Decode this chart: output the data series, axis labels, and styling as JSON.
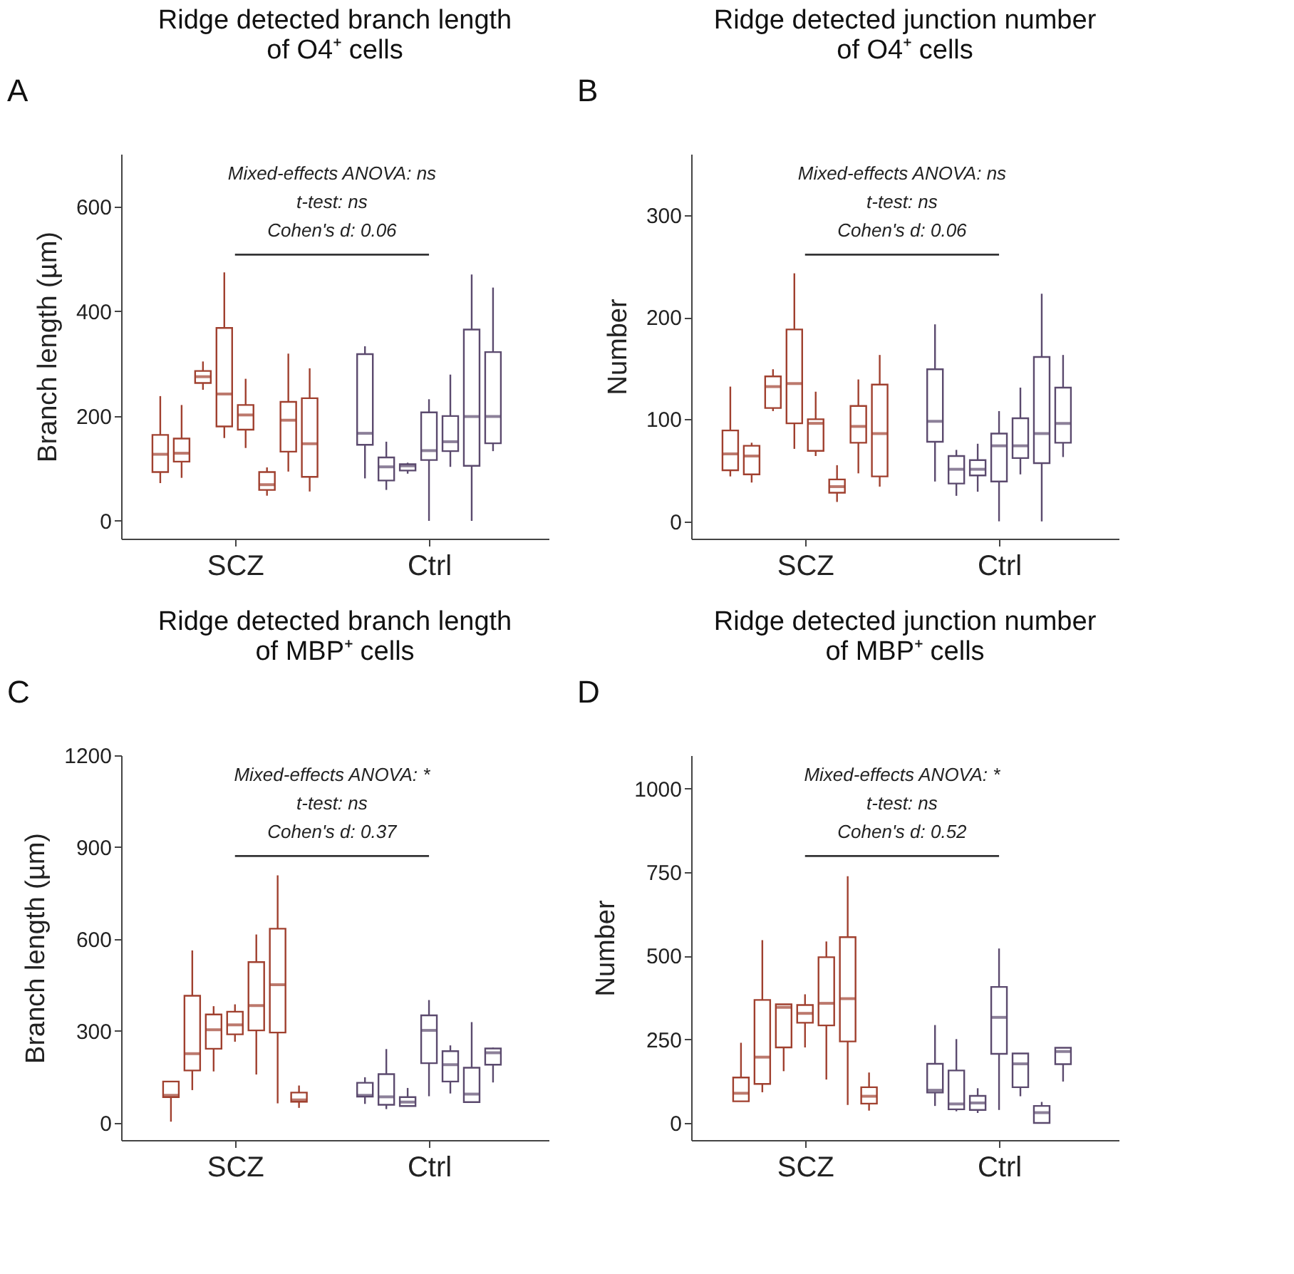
{
  "chart_data": [
    {
      "type": "box",
      "title": "Ridge detected branch length\nof O4⁺ cells",
      "ylabel": "Branch length (µm)",
      "categories": [
        "SCZ",
        "Ctrl"
      ],
      "ylim": [
        -34,
        700
      ],
      "yticks": [
        0,
        200,
        400,
        600
      ],
      "annotations": [
        "A",
        "Mixed-effects ANOVA: ns",
        "t-test: ns",
        "Cohen's d: 0.06"
      ],
      "series": [
        {
          "colors": [
            "#a0402f",
            "#5b4a6e"
          ],
          "boxes": [
            {
              "low": 72,
              "q1": 93,
              "median": 127,
              "q3": 164,
              "high": 238
            },
            {
              "low": 81,
              "q1": 145,
              "median": 167,
              "q3": 318,
              "high": 333
            }
          ]
        },
        {
          "colors": [
            "#a0402f",
            "#5b4a6e"
          ],
          "boxes": [
            {
              "low": 82,
              "q1": 113,
              "median": 129,
              "q3": 157,
              "high": 221
            },
            {
              "low": 59,
              "q1": 77,
              "median": 103,
              "q3": 121,
              "high": 151
            }
          ]
        },
        {
          "colors": [
            "#a0402f",
            "#5b4a6e"
          ],
          "boxes": [
            {
              "low": 250,
              "q1": 263,
              "median": 275,
              "q3": 286,
              "high": 304
            },
            {
              "low": 90,
              "q1": 96,
              "median": 105,
              "q3": 108,
              "high": 111
            }
          ]
        },
        {
          "colors": [
            "#a0402f",
            "#5b4a6e"
          ],
          "boxes": [
            {
              "low": 158,
              "q1": 180,
              "median": 242,
              "q3": 368,
              "high": 474
            },
            {
              "low": 0,
              "q1": 116,
              "median": 134,
              "q3": 207,
              "high": 232
            }
          ]
        },
        {
          "colors": [
            "#a0402f",
            "#5b4a6e"
          ],
          "boxes": [
            {
              "low": 139,
              "q1": 174,
              "median": 202,
              "q3": 221,
              "high": 271
            },
            {
              "low": 103,
              "q1": 133,
              "median": 151,
              "q3": 200,
              "high": 279
            }
          ]
        },
        {
          "colors": [
            "#a0402f",
            "#5b4a6e"
          ],
          "boxes": [
            {
              "low": 48,
              "q1": 59,
              "median": 69,
              "q3": 93,
              "high": 102
            },
            {
              "low": 0,
              "q1": 105,
              "median": 199,
              "q3": 365,
              "high": 470
            }
          ]
        },
        {
          "colors": [
            "#a0402f",
            "#5b4a6e"
          ],
          "boxes": [
            {
              "low": 94,
              "q1": 132,
              "median": 192,
              "q3": 227,
              "high": 319
            },
            {
              "low": 133,
              "q1": 148,
              "median": 199,
              "q3": 322,
              "high": 445
            }
          ]
        },
        {
          "colors": [
            "#a0402f",
            "#5b4a6e"
          ],
          "boxes": [
            {
              "low": 56,
              "q1": 84,
              "median": 147,
              "q3": 234,
              "high": 291
            },
            null
          ]
        }
      ]
    },
    {
      "type": "box",
      "title": "Ridge detected junction number\nof O4⁺ cells",
      "ylabel": "Number",
      "categories": [
        "SCZ",
        "Ctrl"
      ],
      "ylim": [
        -17,
        360
      ],
      "yticks": [
        0,
        100,
        200,
        300
      ],
      "annotations": [
        "B",
        "Mixed-effects ANOVA: ns",
        "t-test: ns",
        "Cohen's d: 0.06"
      ],
      "series": [
        {
          "colors": [
            "#a0402f",
            "#5b4a6e"
          ],
          "boxes": [
            {
              "low": 44,
              "q1": 50,
              "median": 66,
              "q3": 89,
              "high": 132
            },
            {
              "low": 39,
              "q1": 78,
              "median": 98,
              "q3": 149,
              "high": 193
            }
          ]
        },
        {
          "colors": [
            "#a0402f",
            "#5b4a6e"
          ],
          "boxes": [
            {
              "low": 38,
              "q1": 46,
              "median": 64,
              "q3": 74,
              "high": 77
            },
            {
              "low": 25,
              "q1": 37,
              "median": 51,
              "q3": 64,
              "high": 70
            }
          ]
        },
        {
          "colors": [
            "#a0402f",
            "#5b4a6e"
          ],
          "boxes": [
            {
              "low": 108,
              "q1": 111,
              "median": 132,
              "q3": 142,
              "high": 149
            },
            {
              "low": 29,
              "q1": 45,
              "median": 51,
              "q3": 60,
              "high": 76
            }
          ]
        },
        {
          "colors": [
            "#a0402f",
            "#5b4a6e"
          ],
          "boxes": [
            {
              "low": 71,
              "q1": 96,
              "median": 135,
              "q3": 188,
              "high": 243
            },
            {
              "low": 0,
              "q1": 39,
              "median": 74,
              "q3": 86,
              "high": 108
            }
          ]
        },
        {
          "colors": [
            "#a0402f",
            "#5b4a6e"
          ],
          "boxes": [
            {
              "low": 64,
              "q1": 69,
              "median": 96,
              "q3": 100,
              "high": 127
            },
            {
              "low": 46,
              "q1": 62,
              "median": 74,
              "q3": 101,
              "high": 131
            }
          ]
        },
        {
          "colors": [
            "#a0402f",
            "#5b4a6e"
          ],
          "boxes": [
            {
              "low": 19,
              "q1": 28,
              "median": 34,
              "q3": 41,
              "high": 55
            },
            {
              "low": 0,
              "q1": 57,
              "median": 86,
              "q3": 161,
              "high": 223
            }
          ]
        },
        {
          "colors": [
            "#a0402f",
            "#5b4a6e"
          ],
          "boxes": [
            {
              "low": 47,
              "q1": 77,
              "median": 93,
              "q3": 113,
              "high": 139
            },
            {
              "low": 63,
              "q1": 77,
              "median": 96,
              "q3": 131,
              "high": 163
            }
          ]
        },
        {
          "colors": [
            "#a0402f",
            "#5b4a6e"
          ],
          "boxes": [
            {
              "low": 34,
              "q1": 44,
              "median": 86,
              "q3": 134,
              "high": 163
            },
            null
          ]
        }
      ]
    },
    {
      "type": "box",
      "title": "Ridge detected branch length\nof MBP⁺ cells",
      "ylabel": "Branch length (µm)",
      "categories": [
        "SCZ",
        "Ctrl"
      ],
      "ylim": [
        -56,
        1200
      ],
      "yticks": [
        0,
        300,
        600,
        900,
        1200
      ],
      "annotations": [
        "C",
        "Mixed-effects ANOVA: *",
        "t-test: ns",
        "Cohen's d: 0.37"
      ],
      "series": [
        {
          "colors": [
            "#a0402f",
            "#5b4a6e"
          ],
          "boxes": [
            {
              "low": 4,
              "q1": 84,
              "median": 90,
              "q3": 135,
              "high": 135
            },
            {
              "low": 62,
              "q1": 86,
              "median": 90,
              "q3": 131,
              "high": 149
            }
          ]
        },
        {
          "colors": [
            "#a0402f",
            "#5b4a6e"
          ],
          "boxes": [
            {
              "low": 107,
              "q1": 171,
              "median": 226,
              "q3": 415,
              "high": 563
            },
            {
              "low": 45,
              "q1": 59,
              "median": 85,
              "q3": 159,
              "high": 241
            }
          ]
        },
        {
          "colors": [
            "#a0402f",
            "#5b4a6e"
          ],
          "boxes": [
            {
              "low": 168,
              "q1": 242,
              "median": 304,
              "q3": 354,
              "high": 381
            },
            {
              "low": 55,
              "q1": 55,
              "median": 68,
              "q3": 84,
              "high": 114
            }
          ]
        },
        {
          "colors": [
            "#a0402f",
            "#5b4a6e"
          ],
          "boxes": [
            {
              "low": 265,
              "q1": 289,
              "median": 320,
              "q3": 363,
              "high": 387
            },
            {
              "low": 87,
              "q1": 195,
              "median": 302,
              "q3": 351,
              "high": 401
            }
          ]
        },
        {
          "colors": [
            "#a0402f",
            "#5b4a6e"
          ],
          "boxes": [
            {
              "low": 158,
              "q1": 302,
              "median": 383,
              "q3": 525,
              "high": 615
            },
            {
              "low": 96,
              "q1": 135,
              "median": 190,
              "q3": 234,
              "high": 253
            }
          ]
        },
        {
          "colors": [
            "#a0402f",
            "#5b4a6e"
          ],
          "boxes": [
            {
              "low": 64,
              "q1": 295,
              "median": 451,
              "q3": 634,
              "high": 808
            },
            {
              "low": 68,
              "q1": 68,
              "median": 94,
              "q3": 180,
              "high": 329
            }
          ]
        },
        {
          "colors": [
            "#a0402f",
            "#5b4a6e"
          ],
          "boxes": [
            {
              "low": 49,
              "q1": 69,
              "median": 75,
              "q3": 99,
              "high": 122
            },
            {
              "low": 132,
              "q1": 190,
              "median": 229,
              "q3": 243,
              "high": 246
            }
          ]
        }
      ]
    },
    {
      "type": "box",
      "title": "Ridge detected junction number\nof MBP⁺ cells",
      "ylabel": "Number",
      "categories": [
        "SCZ",
        "Ctrl"
      ],
      "ylim": [
        -51,
        1100
      ],
      "yticks": [
        0,
        250,
        500,
        750,
        1000
      ],
      "annotations": [
        "D",
        "Mixed-effects ANOVA: *",
        "t-test: ns",
        "Cohen's d: 0.52"
      ],
      "series": [
        {
          "colors": [
            "#a0402f",
            "#5b4a6e"
          ],
          "boxes": [
            {
              "low": 65,
              "q1": 65,
              "median": 89,
              "q3": 136,
              "high": 240
            },
            {
              "low": 51,
              "q1": 91,
              "median": 98,
              "q3": 177,
              "high": 293
            }
          ]
        },
        {
          "colors": [
            "#a0402f",
            "#5b4a6e"
          ],
          "boxes": [
            {
              "low": 92,
              "q1": 117,
              "median": 197,
              "q3": 368,
              "high": 547
            },
            {
              "low": 35,
              "q1": 41,
              "median": 57,
              "q3": 157,
              "high": 251
            }
          ]
        },
        {
          "colors": [
            "#a0402f",
            "#5b4a6e"
          ],
          "boxes": [
            {
              "low": 155,
              "q1": 226,
              "median": 346,
              "q3": 355,
              "high": 355
            },
            {
              "low": 30,
              "q1": 39,
              "median": 60,
              "q3": 81,
              "high": 104
            }
          ]
        },
        {
          "colors": [
            "#a0402f",
            "#5b4a6e"
          ],
          "boxes": [
            {
              "low": 226,
              "q1": 300,
              "median": 328,
              "q3": 353,
              "high": 385
            },
            {
              "low": 39,
              "q1": 207,
              "median": 316,
              "q3": 407,
              "high": 522
            }
          ]
        },
        {
          "colors": [
            "#a0402f",
            "#5b4a6e"
          ],
          "boxes": [
            {
              "low": 130,
              "q1": 292,
              "median": 358,
              "q3": 496,
              "high": 543
            },
            {
              "low": 80,
              "q1": 107,
              "median": 177,
              "q3": 208,
              "high": 208
            }
          ]
        },
        {
          "colors": [
            "#a0402f",
            "#5b4a6e"
          ],
          "boxes": [
            {
              "low": 54,
              "q1": 244,
              "median": 372,
              "q3": 556,
              "high": 738
            },
            {
              "low": 0,
              "q1": 0,
              "median": 31,
              "q3": 51,
              "high": 63
            }
          ]
        },
        {
          "colors": [
            "#a0402f",
            "#5b4a6e"
          ],
          "boxes": [
            {
              "low": 37,
              "q1": 58,
              "median": 80,
              "q3": 107,
              "high": 151
            },
            {
              "low": 124,
              "q1": 176,
              "median": 214,
              "q3": 225,
              "high": 225
            }
          ]
        }
      ]
    }
  ]
}
